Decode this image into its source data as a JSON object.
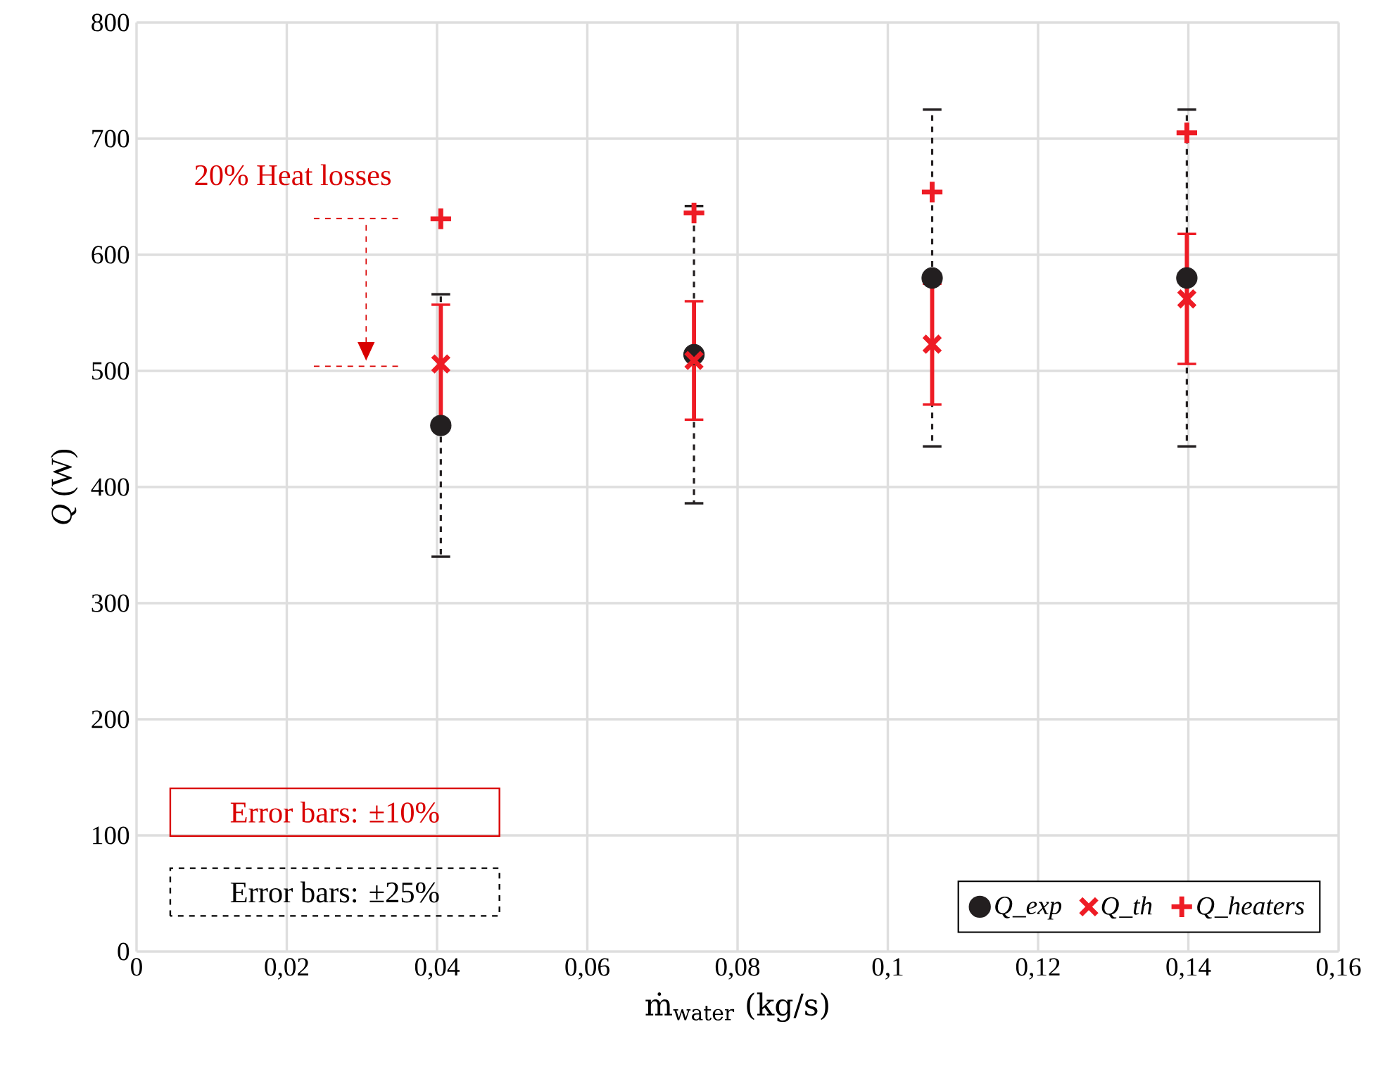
{
  "chart_data": {
    "type": "scatter",
    "xlabel": "ṁ$_{water}$ (kg/s)",
    "ylabel": "*Q* (W)",
    "xlim": [
      0,
      0.16
    ],
    "xticks": [
      0,
      {
        "value": 0.02,
        "label": "0,02"
      },
      {
        "value": 0.04,
        "label": "0,04"
      },
      {
        "value": 0.06,
        "label": "0,06"
      },
      {
        "value": 0.08,
        "label": "0,08"
      },
      {
        "value": 0.1,
        "label": "0,1"
      },
      {
        "value": 0.12,
        "label": "0,12"
      },
      {
        "value": 0.14,
        "label": "0,14"
      },
      {
        "value": 0.16,
        "label": "0,16"
      }
    ],
    "ylim": [
      0,
      800
    ],
    "yticks": [
      0,
      100,
      200,
      300,
      400,
      500,
      600,
      700,
      800
    ],
    "grid": true,
    "legend": "bottom right",
    "x": [
      0.0405,
      0.0742,
      0.1059,
      0.1398
    ],
    "series": [
      {
        "name": "Q_exp",
        "color": "#231f20",
        "marker": "circle",
        "line_style": "dashed",
        "values": [
          453,
          514,
          580,
          580
        ],
        "errors": [
          113,
          128,
          145,
          145
        ]
      },
      {
        "name": "Q_th",
        "color": "#ee1c25",
        "marker": "cross",
        "line_style": "solid",
        "values": [
          506,
          509,
          523,
          562
        ],
        "errors": [
          51,
          51,
          52,
          56
        ]
      },
      {
        "name": "Q_heaters",
        "color": "#ee1c25",
        "marker": "plus",
        "values": [
          631,
          636,
          654,
          705
        ]
      }
    ],
    "annotations": [
      "20% Heat losses",
      "Error bars: ±10%",
      "Error bars: ±25%"
    ]
  }
}
